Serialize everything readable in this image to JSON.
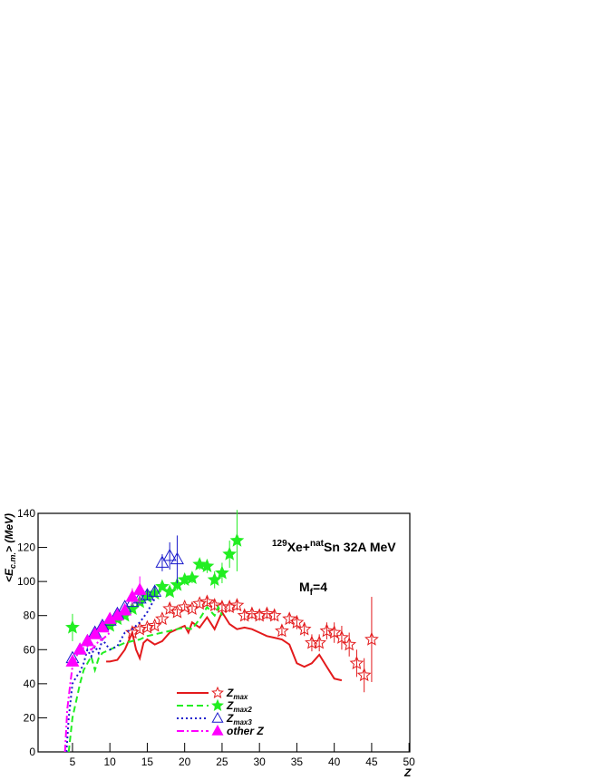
{
  "chart_data": {
    "type": "scatter",
    "title": {
      "mass": "129",
      "element1": "Xe+",
      "nat": "nat",
      "element2": "Sn 32A MeV"
    },
    "annotation": {
      "text": "M",
      "sub": "f",
      "rest": "=4"
    },
    "y_label": {
      "open": "<E",
      "sub": "c.m.",
      "close": "> (MeV)"
    },
    "x_label": "Z",
    "xlim": [
      0.4,
      50.1
    ],
    "ylim": [
      0,
      140
    ],
    "xticks": [
      5,
      10,
      15,
      20,
      25,
      30,
      35,
      40,
      45,
      50
    ],
    "yticks": [
      0,
      20,
      40,
      60,
      80,
      100,
      120,
      140
    ],
    "series": [
      {
        "name": "Z",
        "name_sub": "max",
        "color": "#e31a1c",
        "marker": "open-star",
        "line_style": "solid",
        "x": [
          13,
          14,
          15,
          16,
          17,
          18,
          19,
          20,
          21,
          22,
          23,
          24,
          25,
          26,
          27,
          28,
          29,
          30,
          31,
          32,
          33,
          34,
          35,
          36,
          37,
          38,
          39,
          40,
          41,
          42,
          43,
          44,
          45
        ],
        "values": [
          70,
          72,
          73,
          74,
          78,
          84,
          82,
          85,
          84,
          87,
          88,
          86,
          85,
          85,
          86,
          80,
          81,
          80,
          81,
          80,
          71,
          78,
          76,
          72,
          64,
          64,
          71,
          70,
          67,
          63,
          52,
          45,
          66
        ],
        "errors": [
          2,
          2,
          2,
          2,
          2,
          3,
          2,
          2,
          2,
          2,
          3,
          3,
          3,
          3,
          3,
          3,
          3,
          3,
          3,
          3,
          3,
          3,
          4,
          4,
          5,
          5,
          5,
          6,
          7,
          7,
          8,
          10,
          25
        ],
        "line_x": [
          9.5,
          10,
          11,
          12,
          13,
          13.5,
          14,
          14.5,
          15,
          16,
          17,
          18,
          19,
          20,
          20.5,
          21,
          22,
          23,
          24,
          25,
          26,
          27,
          28,
          29,
          30,
          31,
          32,
          33,
          34,
          35,
          36,
          37,
          38,
          39,
          40,
          41
        ],
        "line_values": [
          53,
          53,
          54,
          60,
          70,
          60,
          55,
          64,
          66,
          63,
          65,
          70,
          72,
          74,
          70,
          76,
          73,
          79,
          72,
          82,
          75,
          72,
          73,
          72,
          70,
          68,
          67,
          66,
          63,
          52,
          50,
          52,
          57,
          50,
          43,
          42
        ]
      },
      {
        "name": "Z",
        "name_sub": "max2",
        "color": "#22ee22",
        "marker": "filled-star",
        "line_style": "dashed",
        "x": [
          5,
          10,
          11,
          12,
          13,
          14,
          15,
          16,
          17,
          18,
          19,
          20,
          21,
          22,
          23,
          24,
          25,
          26,
          27
        ],
        "values": [
          73,
          74,
          78,
          80,
          84,
          88,
          91,
          93,
          97,
          94,
          98,
          101,
          102,
          110,
          109,
          101,
          105,
          116,
          124
        ],
        "errors": [
          8,
          2,
          2,
          2,
          2,
          2,
          2,
          2,
          2,
          2,
          3,
          3,
          3,
          3,
          4,
          5,
          6,
          8,
          18
        ],
        "line_x": [
          4.5,
          5,
          5.5,
          6,
          6.5,
          7,
          7.5,
          8,
          8.5,
          9,
          10,
          11,
          12,
          13,
          14,
          15,
          16,
          17,
          18,
          19,
          20,
          21,
          22,
          23,
          24,
          24.5,
          25
        ],
        "line_values": [
          0,
          20,
          30,
          40,
          48,
          52,
          56,
          48,
          55,
          58,
          60,
          62,
          64,
          65,
          66,
          68,
          69,
          70,
          71,
          72,
          73,
          72,
          78,
          85,
          80,
          85,
          80
        ]
      },
      {
        "name": "Z",
        "name_sub": "max3",
        "color": "#1a1acc",
        "marker": "open-triangle",
        "line_style": "dotted",
        "x": [
          5,
          6,
          7,
          8,
          9,
          10,
          11,
          12,
          13,
          14,
          15,
          16,
          17,
          18,
          19
        ],
        "values": [
          55,
          60,
          65,
          70,
          74,
          77,
          81,
          85,
          88,
          90,
          92,
          94,
          111,
          115,
          113
        ],
        "errors": [
          2,
          2,
          2,
          2,
          2,
          2,
          2,
          2,
          3,
          3,
          3,
          3,
          5,
          8,
          14
        ],
        "line_x": [
          4.2,
          4.5,
          5,
          5.5,
          6,
          6.5,
          7,
          7.5,
          8,
          8.5,
          9,
          10,
          11,
          12,
          13,
          14,
          15,
          16
        ],
        "line_values": [
          0,
          20,
          40,
          44,
          47,
          52,
          60,
          56,
          62,
          58,
          66,
          60,
          62,
          70,
          72,
          76,
          82,
          90
        ]
      },
      {
        "name": "other Z",
        "color": "#ff00ff",
        "marker": "filled-triangle",
        "line_style": "dashdot",
        "x": [
          5,
          6,
          7,
          8,
          9,
          10,
          11,
          12,
          13,
          14
        ],
        "values": [
          53,
          60,
          65,
          69,
          73,
          78,
          80,
          83,
          91,
          95
        ],
        "errors": [
          3,
          2,
          2,
          2,
          2,
          2,
          2,
          3,
          5,
          8
        ],
        "line_x": [
          4,
          4.3,
          4.7,
          5,
          5.5,
          6,
          6.5,
          7,
          7.5,
          8,
          8.5,
          9,
          9.5,
          10
        ],
        "line_values": [
          0,
          25,
          40,
          50,
          56,
          60,
          61,
          62,
          60,
          62,
          65,
          66,
          68,
          70
        ]
      }
    ]
  }
}
